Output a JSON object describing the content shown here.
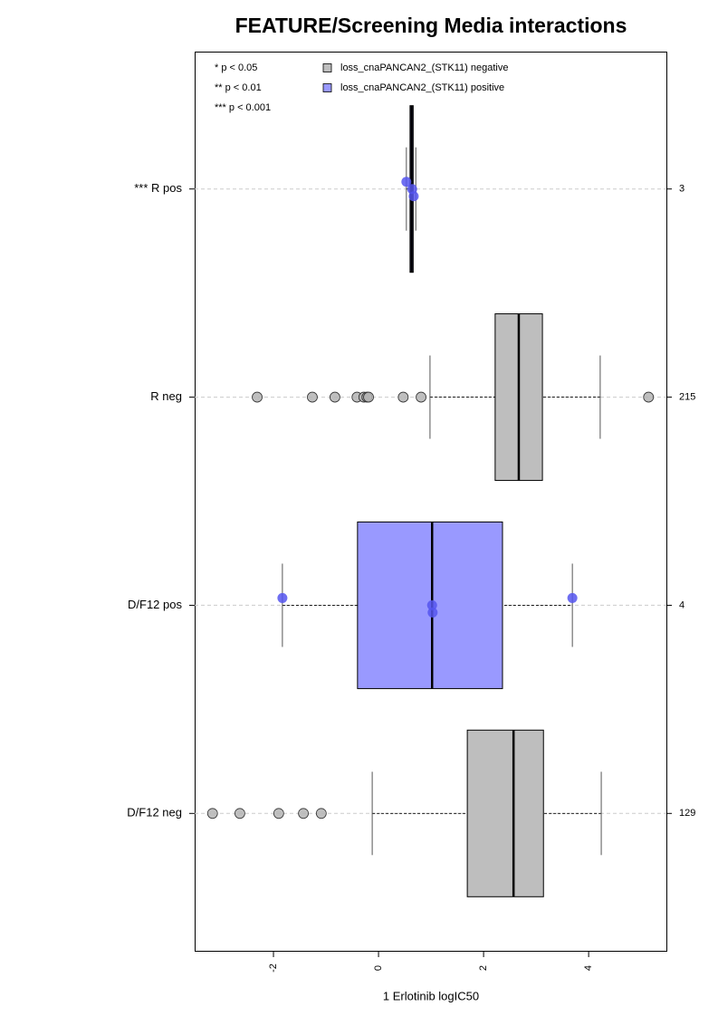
{
  "chart_data": {
    "type": "box",
    "title": "FEATURE/Screening Media interactions",
    "x_label": "1 Erlotinib logIC50",
    "xlim": [
      -3.5,
      5.48
    ],
    "xticks": [
      -2,
      0,
      2,
      4
    ],
    "categories": [
      "*** R pos",
      "R neg",
      "D/F12 pos",
      "D/F12 neg"
    ],
    "counts": [
      3,
      215,
      4,
      129
    ],
    "colors": [
      "#9999ff",
      "#bebebe",
      "#9999ff",
      "#bebebe"
    ],
    "point_colors": [
      "#5555ee",
      "#b4b4b4",
      "#5555ee",
      "#b4b4b4"
    ],
    "boxes": [
      {
        "whislo": 0.53,
        "q1": 0.6,
        "med": 0.63,
        "q3": 0.66,
        "whishi": 0.71,
        "points": [
          0.53,
          0.64,
          0.67
        ]
      },
      {
        "whislo": 0.98,
        "q1": 2.22,
        "med": 2.67,
        "q3": 3.12,
        "whishi": 4.22,
        "points": [
          -2.31,
          -1.26,
          -0.83,
          -0.41,
          -0.28,
          -0.22,
          -0.19,
          0.47,
          0.81,
          5.14
        ]
      },
      {
        "whislo": -1.83,
        "q1": -0.4,
        "med": 1.02,
        "q3": 2.36,
        "whishi": 3.69,
        "points": [
          -1.83,
          1.02,
          1.03,
          3.69
        ]
      },
      {
        "whislo": -0.12,
        "q1": 1.69,
        "med": 2.57,
        "q3": 3.14,
        "whishi": 4.24,
        "points": [
          -3.16,
          -2.64,
          -1.9,
          -1.43,
          -1.09
        ]
      }
    ],
    "notes": [
      "* p < 0.05",
      "** p < 0.01",
      "*** p < 0.001"
    ],
    "legend": [
      {
        "label": "loss_cnaPANCAN2_(STK11) negative",
        "color": "#bebebe"
      },
      {
        "label": "loss_cnaPANCAN2_(STK11) positive",
        "color": "#9999ff"
      }
    ],
    "grid": true
  }
}
